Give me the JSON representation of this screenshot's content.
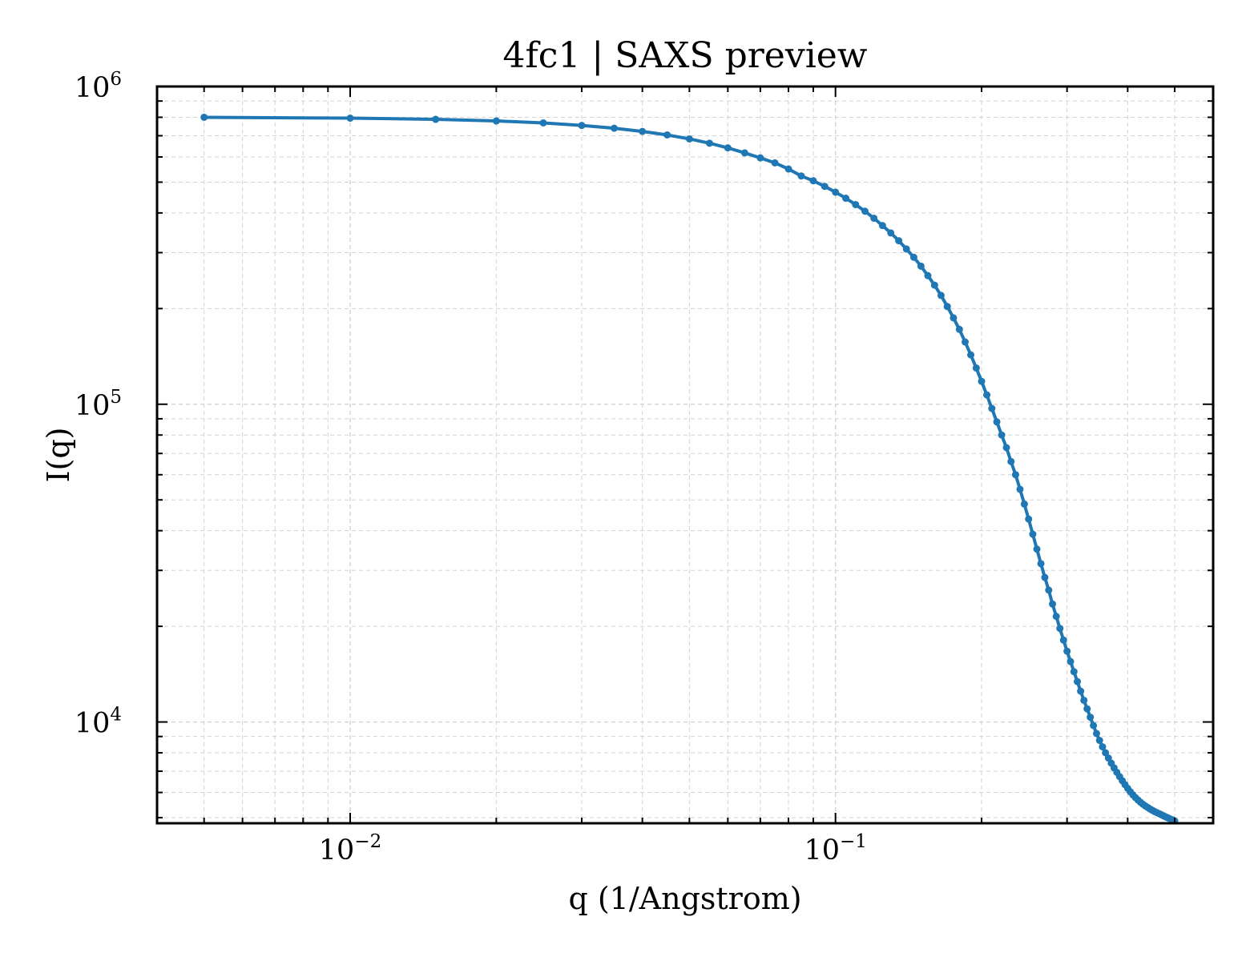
{
  "chart_data": {
    "type": "line",
    "title": "4fc1 | SAXS preview",
    "xlabel": "q (1/Angstrom)",
    "ylabel": "I(q)",
    "xscale": "log",
    "yscale": "log",
    "xlim": [
      0.004,
      0.6
    ],
    "ylim": [
      4800,
      1000000
    ],
    "grid": true,
    "grid_style": "dashed major and minor",
    "markers": true,
    "x_ticks": [
      {
        "value": 0.01,
        "base": "10",
        "exp": "−2"
      },
      {
        "value": 0.1,
        "base": "10",
        "exp": "−1"
      }
    ],
    "y_ticks": [
      {
        "value": 10000,
        "base": "10",
        "exp": "4"
      },
      {
        "value": 100000,
        "base": "10",
        "exp": "5"
      },
      {
        "value": 1000000,
        "base": "10",
        "exp": "6"
      }
    ],
    "colors": {
      "series": "#1f77b4",
      "grid": "#d3d3d3",
      "axes": "#000000"
    },
    "series": [
      {
        "points": [
          [
            0.005,
            800000
          ],
          [
            0.01,
            795000
          ],
          [
            0.015,
            788000
          ],
          [
            0.02,
            779000
          ],
          [
            0.025,
            768000
          ],
          [
            0.03,
            754000
          ],
          [
            0.035,
            739000
          ],
          [
            0.04,
            722000
          ],
          [
            0.045,
            704000
          ],
          [
            0.05,
            684000
          ],
          [
            0.055,
            663000
          ],
          [
            0.06,
            641000
          ],
          [
            0.065,
            618000
          ],
          [
            0.07,
            596000
          ],
          [
            0.075,
            575000
          ],
          [
            0.08,
            550000
          ],
          [
            0.085,
            523000
          ],
          [
            0.09,
            505000
          ],
          [
            0.095,
            485000
          ],
          [
            0.1,
            465000
          ],
          [
            0.105,
            445000
          ],
          [
            0.11,
            425000
          ],
          [
            0.115,
            405000
          ],
          [
            0.12,
            385000
          ],
          [
            0.125,
            365000
          ],
          [
            0.13,
            346000
          ],
          [
            0.135,
            327000
          ],
          [
            0.14,
            308000
          ],
          [
            0.145,
            290000
          ],
          [
            0.15,
            272000
          ],
          [
            0.155,
            254000
          ],
          [
            0.16,
            237000
          ],
          [
            0.165,
            220000
          ],
          [
            0.17,
            203000
          ],
          [
            0.175,
            187000
          ],
          [
            0.18,
            172000
          ],
          [
            0.185,
            157000
          ],
          [
            0.19,
            143000
          ],
          [
            0.195,
            130000
          ],
          [
            0.2,
            118000
          ],
          [
            0.205,
            107000
          ],
          [
            0.21,
            97000
          ],
          [
            0.215,
            88000
          ],
          [
            0.22,
            80000
          ],
          [
            0.225,
            73000
          ],
          [
            0.23,
            66000
          ],
          [
            0.235,
            60000
          ],
          [
            0.24,
            54000
          ],
          [
            0.245,
            48500
          ],
          [
            0.25,
            43500
          ],
          [
            0.255,
            39000
          ],
          [
            0.26,
            35000
          ],
          [
            0.265,
            31500
          ],
          [
            0.27,
            28500
          ],
          [
            0.275,
            26000
          ],
          [
            0.28,
            23500
          ],
          [
            0.285,
            21500
          ],
          [
            0.29,
            19700
          ],
          [
            0.295,
            18100
          ],
          [
            0.3,
            16700
          ],
          [
            0.305,
            15500
          ],
          [
            0.31,
            14400
          ],
          [
            0.315,
            13400
          ],
          [
            0.32,
            12500
          ],
          [
            0.325,
            11700
          ],
          [
            0.33,
            11000
          ],
          [
            0.335,
            10350
          ],
          [
            0.34,
            9750
          ],
          [
            0.345,
            9200
          ],
          [
            0.35,
            8750
          ],
          [
            0.355,
            8350
          ],
          [
            0.36,
            8000
          ],
          [
            0.365,
            7700
          ],
          [
            0.37,
            7420
          ],
          [
            0.375,
            7170
          ],
          [
            0.38,
            6940
          ],
          [
            0.385,
            6730
          ],
          [
            0.39,
            6530
          ],
          [
            0.395,
            6350
          ],
          [
            0.4,
            6180
          ],
          [
            0.405,
            6030
          ],
          [
            0.41,
            5900
          ],
          [
            0.415,
            5780
          ],
          [
            0.42,
            5680
          ],
          [
            0.425,
            5590
          ],
          [
            0.43,
            5510
          ],
          [
            0.435,
            5440
          ],
          [
            0.44,
            5380
          ],
          [
            0.445,
            5320
          ],
          [
            0.45,
            5270
          ],
          [
            0.455,
            5220
          ],
          [
            0.46,
            5180
          ],
          [
            0.465,
            5140
          ],
          [
            0.47,
            5100
          ],
          [
            0.475,
            5060
          ],
          [
            0.48,
            5020
          ],
          [
            0.485,
            4985
          ],
          [
            0.49,
            4950
          ],
          [
            0.495,
            4920
          ],
          [
            0.5,
            4880
          ]
        ]
      }
    ]
  }
}
